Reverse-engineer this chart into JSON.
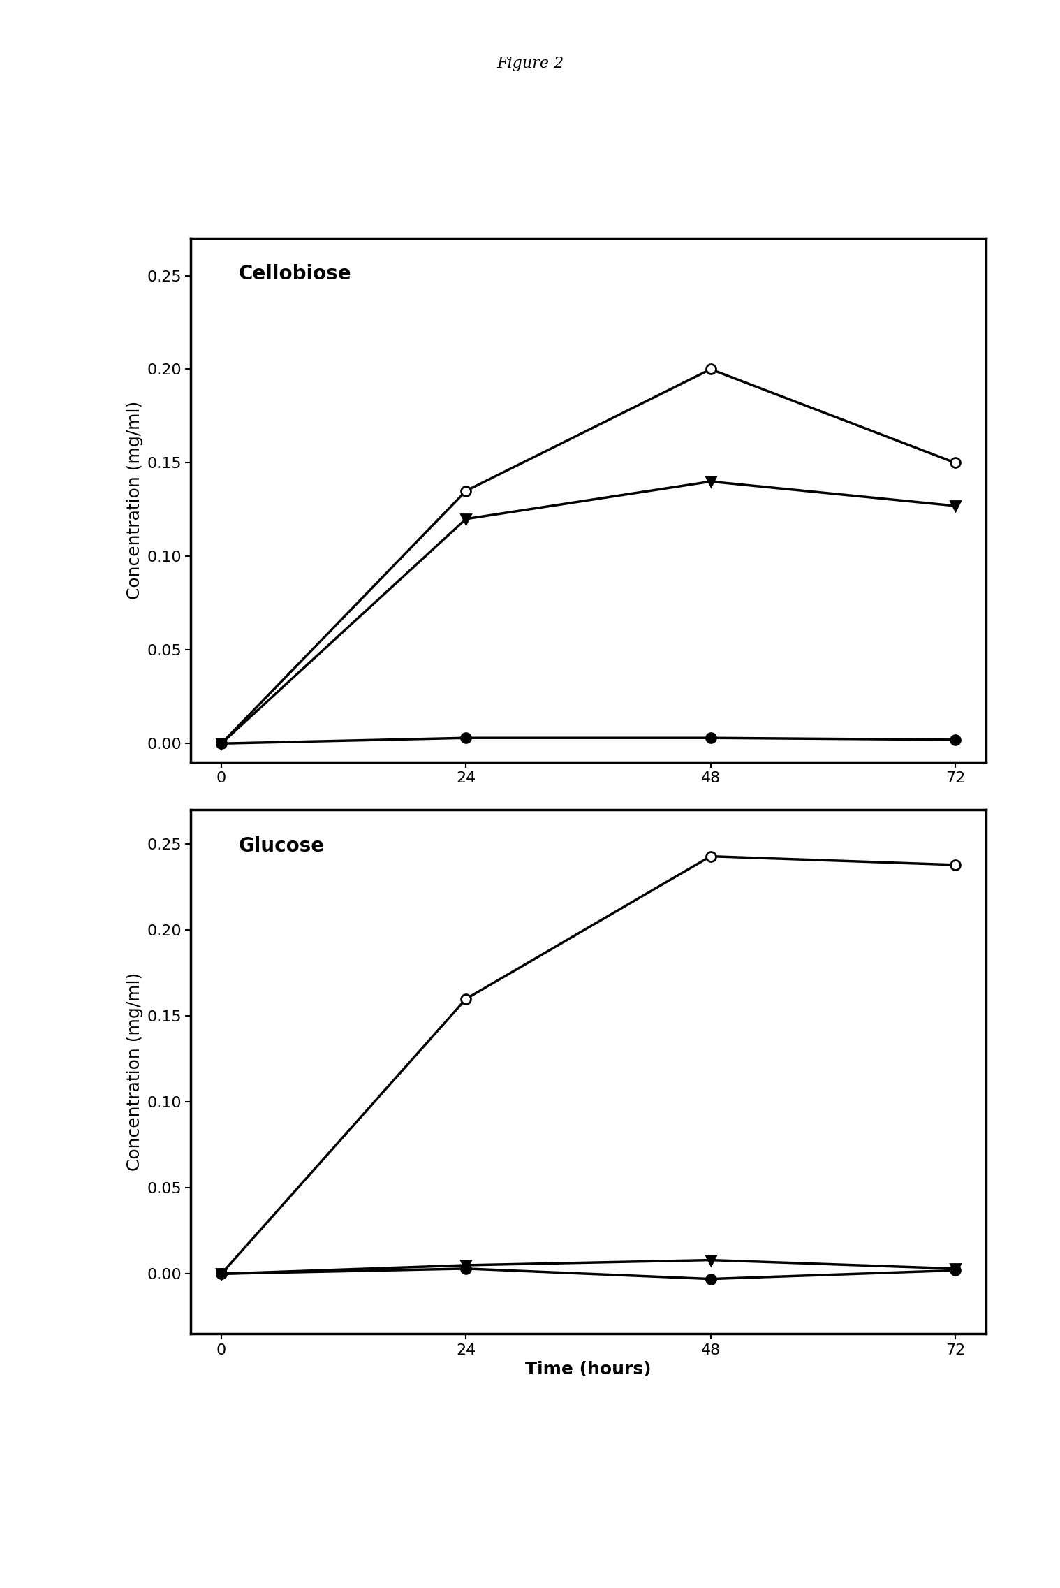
{
  "title": "Figure 2",
  "time_points": [
    0,
    24,
    48,
    72
  ],
  "cellobiose": {
    "label": "Cellobiose",
    "open_circle": [
      0.0,
      0.135,
      0.2,
      0.15
    ],
    "filled_triangle": [
      0.0,
      0.12,
      0.14,
      0.127
    ],
    "filled_circle": [
      0.0,
      0.003,
      0.003,
      0.002
    ],
    "ylim": [
      -0.01,
      0.27
    ],
    "yticks": [
      0.0,
      0.05,
      0.1,
      0.15,
      0.2,
      0.25
    ]
  },
  "glucose": {
    "label": "Glucose",
    "open_circle": [
      0.0,
      0.16,
      0.243,
      0.238
    ],
    "filled_triangle": [
      0.0,
      0.005,
      0.008,
      0.003
    ],
    "filled_circle": [
      0.0,
      0.003,
      -0.003,
      0.002
    ],
    "ylim": [
      -0.035,
      0.27
    ],
    "yticks": [
      0.0,
      0.05,
      0.1,
      0.15,
      0.2,
      0.25
    ]
  },
  "xlabel": "Time (hours)",
  "ylabel": "Concentration (mg/ml)",
  "xticks": [
    0,
    24,
    48,
    72
  ],
  "line_width": 2.5,
  "marker_size": 10,
  "label_fontsize": 18,
  "title_fontsize": 16,
  "subplot_label_fontsize": 20,
  "tick_fontsize": 16,
  "background_color": "#ffffff"
}
